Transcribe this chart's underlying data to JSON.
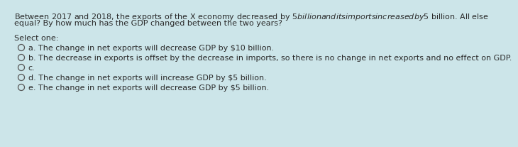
{
  "background_color": "#cce5e9",
  "text_color": "#2a2a2a",
  "question_line1": "Between 2017 and 2018, the exports of the X economy decreased by $5 billion and its imports increased by $5 billion. All else",
  "question_line2": "equal? By how much has the GDP changed between the two years?",
  "select_label": "Select one:",
  "options": [
    "a. The change in net exports will decrease GDP by $10 billion.",
    "b. The decrease in exports is offset by the decrease in imports, so there is no change in net exports and no effect on GDP.",
    "c.",
    "d. The change in net exports will increase GDP by $5 billion.",
    "e. The change in net exports will decrease GDP by $5 billion."
  ],
  "circle_color": "#555555",
  "font_size": 8.0
}
